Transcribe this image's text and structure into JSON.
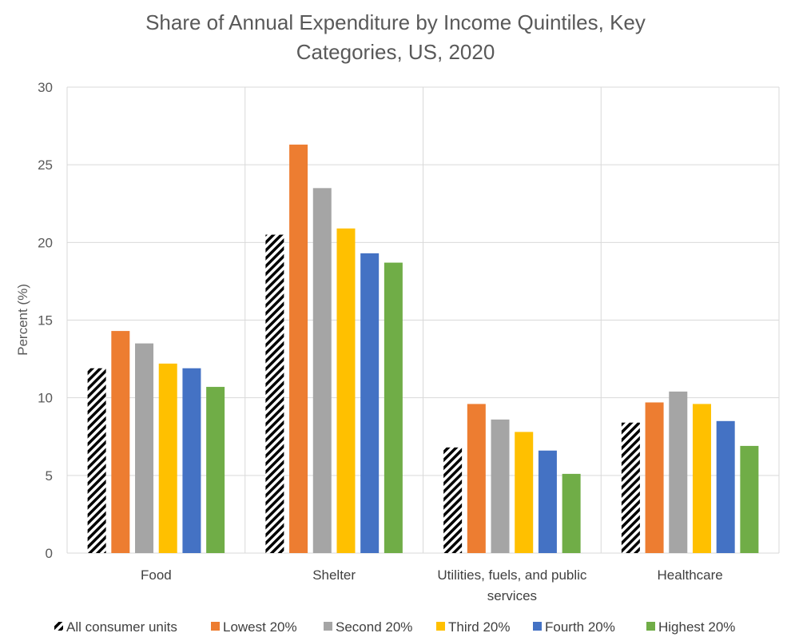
{
  "chart_data": {
    "type": "bar",
    "title_lines": [
      "Share of Annual Expenditure by Income Quintiles, Key",
      "Categories, US, 2020"
    ],
    "ylabel": "Percent (%)",
    "xlabel": "",
    "ylim": [
      0,
      30
    ],
    "yticks": [
      0,
      5,
      10,
      15,
      20,
      25,
      30
    ],
    "grid": true,
    "legend_position": "bottom",
    "categories": [
      [
        "Food"
      ],
      [
        "Shelter"
      ],
      [
        "Utilities, fuels, and public",
        "services"
      ],
      [
        "Healthcare"
      ]
    ],
    "series": [
      {
        "name": "All consumer units",
        "color": "#000000",
        "pattern": "hatch",
        "values": [
          11.9,
          20.5,
          6.8,
          8.4
        ]
      },
      {
        "name": "Lowest 20%",
        "color": "#ED7D31",
        "values": [
          14.3,
          26.3,
          9.6,
          9.7
        ]
      },
      {
        "name": "Second 20%",
        "color": "#A5A5A5",
        "values": [
          13.5,
          23.5,
          8.6,
          10.4
        ]
      },
      {
        "name": "Third 20%",
        "color": "#FFC000",
        "values": [
          12.2,
          20.9,
          7.8,
          9.6
        ]
      },
      {
        "name": "Fourth 20%",
        "color": "#4472C4",
        "values": [
          11.9,
          19.3,
          6.6,
          8.5
        ]
      },
      {
        "name": "Highest 20%",
        "color": "#70AD47",
        "values": [
          10.7,
          18.7,
          5.1,
          6.9
        ]
      }
    ]
  }
}
